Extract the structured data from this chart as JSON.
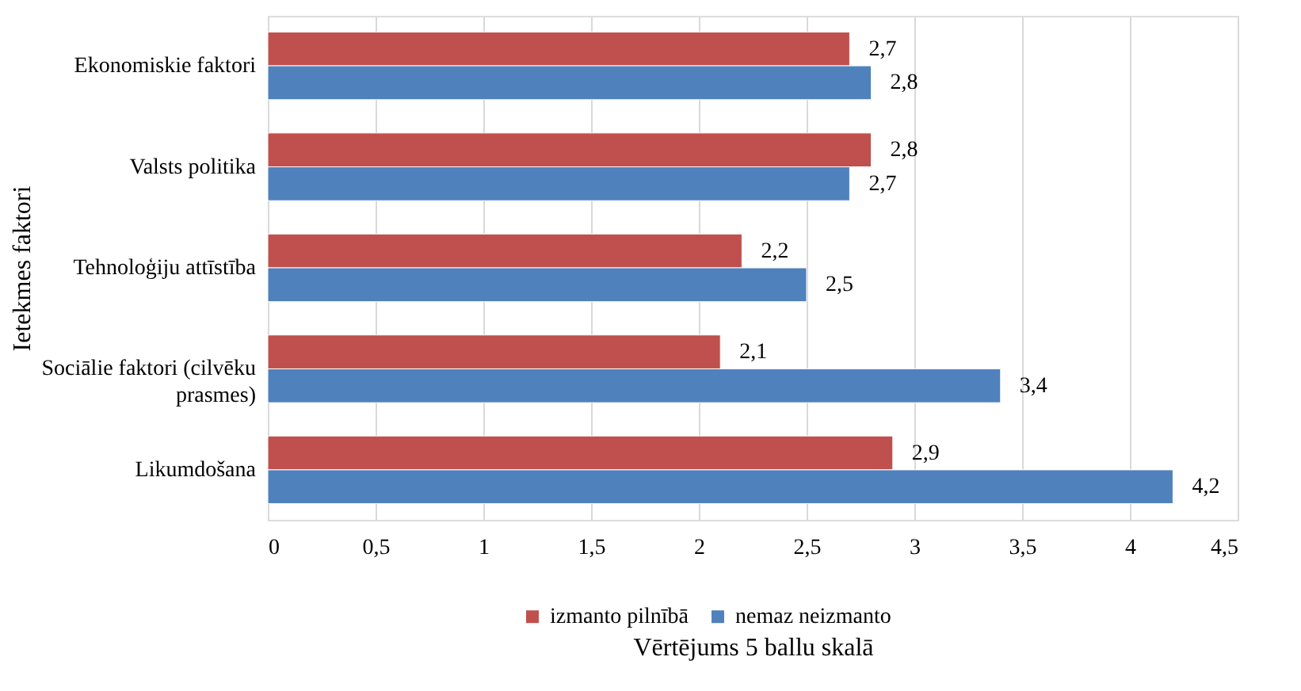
{
  "chart_data": {
    "type": "bar",
    "orientation": "horizontal",
    "xlabel": "Vērtējums 5 ballu skalā",
    "ylabel": "Ietekmes faktori",
    "categories": [
      "Ekonomiskie faktori",
      "Valsts politika",
      "Tehnoloģiju attīstība",
      "Sociālie faktori (cilvēku prasmes)",
      "Likumdošana"
    ],
    "series": [
      {
        "name": "izmanto pilnībā",
        "color": "#c0504d",
        "values": [
          2.7,
          2.8,
          2.2,
          2.1,
          2.9
        ],
        "value_labels": [
          "2,7",
          "2,8",
          "2,2",
          "2,1",
          "2,9"
        ]
      },
      {
        "name": "nemaz neizmanto",
        "color": "#4f81bd",
        "values": [
          2.8,
          2.7,
          2.5,
          3.4,
          4.2
        ],
        "value_labels": [
          "2,8",
          "2,7",
          "2,5",
          "3,4",
          "4,2"
        ]
      }
    ],
    "xlim": [
      0,
      4.5
    ],
    "xticks": [
      0,
      {
        "value": 0.5,
        "label": "0,5"
      },
      1,
      {
        "value": 1.5,
        "label": "1,5"
      },
      2,
      {
        "value": 2.5,
        "label": "2,5"
      },
      3,
      {
        "value": 3.5,
        "label": "3,5"
      },
      4,
      {
        "value": 4.5,
        "label": "4,5"
      }
    ],
    "grid": "x",
    "legend": "bottom"
  }
}
